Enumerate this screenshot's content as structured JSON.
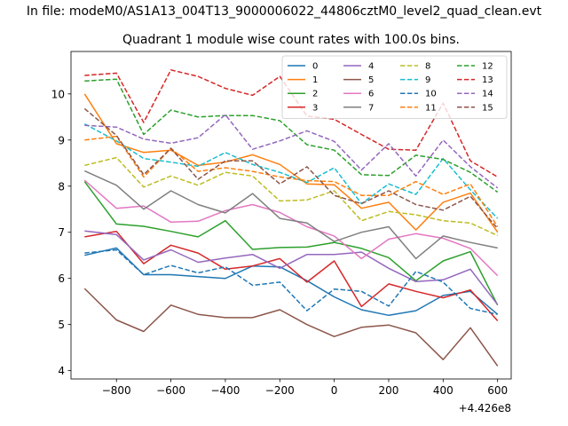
{
  "suptitle": "In file: modeM0/AS1A13_004T13_9000006022_44806cztM0_level2_quad_clean.evt",
  "chart_data": {
    "type": "line",
    "title": "Quadrant 1 module wise count rates with 100.0s bins.",
    "xlabel": "",
    "ylabel": "",
    "x_offset_label": "+4.426e8",
    "x": [
      -917,
      -800,
      -700,
      -600,
      -500,
      -400,
      -300,
      -200,
      -100,
      0,
      100,
      200,
      300,
      400,
      500,
      600
    ],
    "xlim": [
      -967,
      650
    ],
    "ylim": [
      3.82,
      10.92
    ],
    "xticks": [
      -800,
      -600,
      -400,
      -200,
      0,
      200,
      400,
      600
    ],
    "xtick_labels": [
      "−800",
      "−600",
      "−400",
      "−200",
      "0",
      "200",
      "400",
      "600"
    ],
    "yticks": [
      4,
      5,
      6,
      7,
      8,
      9,
      10
    ],
    "ytick_labels": [
      "4",
      "5",
      "6",
      "7",
      "8",
      "9",
      "10"
    ],
    "grid": false,
    "legend_position": "top-right",
    "legend_columns": 4,
    "series": [
      {
        "name": "0",
        "color": "#1f77b4",
        "dash": "solid",
        "values": [
          6.5,
          6.66,
          6.08,
          6.08,
          6.04,
          6.0,
          6.27,
          6.25,
          5.95,
          5.6,
          5.32,
          5.2,
          5.3,
          5.63,
          5.72,
          5.22
        ]
      },
      {
        "name": "1",
        "color": "#ff7f0e",
        "dash": "solid",
        "values": [
          10.0,
          8.92,
          8.73,
          8.78,
          8.45,
          8.52,
          8.68,
          8.47,
          8.05,
          8.03,
          7.52,
          7.65,
          7.05,
          7.65,
          7.85,
          7.0
        ]
      },
      {
        "name": "2",
        "color": "#2ca02c",
        "dash": "solid",
        "values": [
          8.1,
          7.18,
          7.13,
          7.02,
          6.9,
          7.25,
          6.63,
          6.67,
          6.68,
          6.78,
          6.65,
          6.45,
          5.95,
          6.38,
          6.58,
          5.42
        ]
      },
      {
        "name": "3",
        "color": "#d62728",
        "dash": "solid",
        "values": [
          6.9,
          7.02,
          6.32,
          6.72,
          6.55,
          6.2,
          6.27,
          6.43,
          5.92,
          6.38,
          5.39,
          5.88,
          5.72,
          5.58,
          5.75,
          5.08
        ]
      },
      {
        "name": "4",
        "color": "#9467bd",
        "dash": "solid",
        "values": [
          7.03,
          6.95,
          6.4,
          6.62,
          6.35,
          6.44,
          6.52,
          6.22,
          6.52,
          6.52,
          6.57,
          6.22,
          5.93,
          5.97,
          6.2,
          5.43
        ]
      },
      {
        "name": "5",
        "color": "#8c564b",
        "dash": "solid",
        "values": [
          5.78,
          5.1,
          4.85,
          5.42,
          5.22,
          5.15,
          5.15,
          5.32,
          5.0,
          4.74,
          4.94,
          4.99,
          4.82,
          4.24,
          4.93,
          4.1
        ]
      },
      {
        "name": "6",
        "color": "#e377c2",
        "dash": "solid",
        "values": [
          8.13,
          7.52,
          7.57,
          7.22,
          7.24,
          7.47,
          7.6,
          7.43,
          7.12,
          6.92,
          6.43,
          6.85,
          6.97,
          6.87,
          6.65,
          6.06
        ]
      },
      {
        "name": "7",
        "color": "#7f7f7f",
        "dash": "solid",
        "values": [
          8.33,
          8.02,
          7.5,
          7.9,
          7.6,
          7.42,
          7.84,
          7.3,
          7.2,
          6.8,
          7.0,
          7.12,
          6.43,
          6.92,
          6.78,
          6.66
        ]
      },
      {
        "name": "8",
        "color": "#bcbd22",
        "dash": "dashed",
        "values": [
          8.45,
          8.62,
          7.98,
          8.22,
          8.02,
          8.3,
          8.22,
          7.68,
          7.7,
          7.9,
          7.25,
          7.45,
          7.38,
          7.25,
          7.2,
          6.93
        ]
      },
      {
        "name": "9",
        "color": "#17becf",
        "dash": "dashed",
        "values": [
          9.35,
          8.98,
          8.6,
          8.52,
          8.43,
          8.73,
          8.47,
          8.3,
          8.08,
          8.4,
          7.62,
          8.05,
          7.82,
          8.6,
          7.92,
          7.3
        ]
      },
      {
        "name": "10",
        "color": "#1f77b4",
        "dash": "dashed",
        "values": [
          6.55,
          6.62,
          6.08,
          6.28,
          6.12,
          6.25,
          5.85,
          5.92,
          5.3,
          5.77,
          5.72,
          5.4,
          6.15,
          5.92,
          5.35,
          5.22
        ]
      },
      {
        "name": "11",
        "color": "#ff7f0e",
        "dash": "dashed",
        "values": [
          9.0,
          9.08,
          8.2,
          8.82,
          8.32,
          8.4,
          8.32,
          8.2,
          8.12,
          8.1,
          7.8,
          7.8,
          8.1,
          7.82,
          8.05,
          7.12
        ]
      },
      {
        "name": "12",
        "color": "#2ca02c",
        "dash": "dashed",
        "values": [
          10.28,
          10.32,
          9.12,
          9.65,
          9.5,
          9.53,
          9.53,
          9.42,
          8.9,
          8.78,
          8.25,
          8.23,
          8.67,
          8.58,
          8.3,
          7.87
        ]
      },
      {
        "name": "13",
        "color": "#d62728",
        "dash": "dashed",
        "values": [
          10.4,
          10.45,
          9.38,
          10.52,
          10.38,
          10.12,
          9.97,
          10.38,
          9.52,
          9.45,
          9.12,
          8.8,
          8.78,
          9.8,
          8.55,
          8.2
        ]
      },
      {
        "name": "14",
        "color": "#9467bd",
        "dash": "dashed",
        "values": [
          9.32,
          9.28,
          9.02,
          8.93,
          9.05,
          9.55,
          8.8,
          8.98,
          9.2,
          8.97,
          8.35,
          8.92,
          8.22,
          9.0,
          8.42,
          7.96
        ]
      },
      {
        "name": "15",
        "color": "#8c564b",
        "dash": "dashed",
        "values": [
          9.68,
          9.1,
          8.25,
          8.82,
          8.15,
          8.55,
          8.55,
          8.05,
          8.42,
          7.8,
          7.62,
          7.9,
          7.6,
          7.48,
          7.78,
          7.08
        ]
      }
    ]
  }
}
